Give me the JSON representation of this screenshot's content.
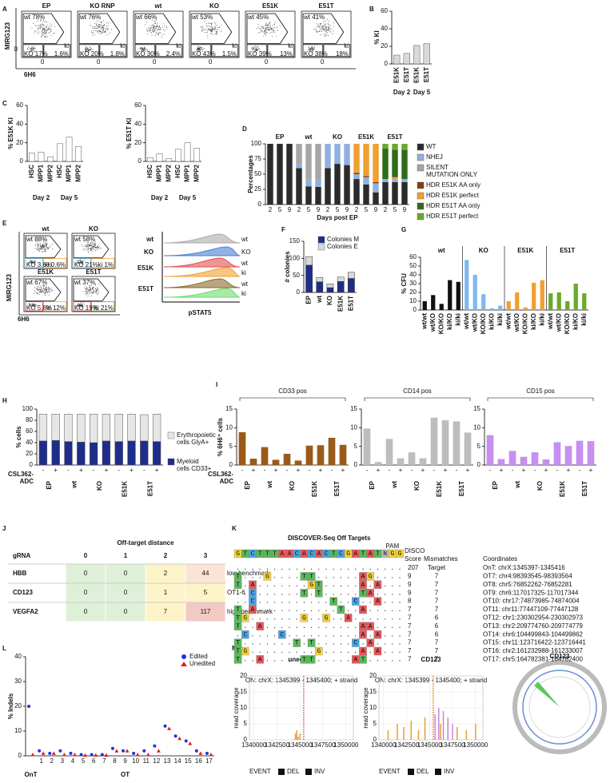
{
  "panel_labels": [
    "A",
    "B",
    "C",
    "D",
    "E",
    "F",
    "G",
    "H",
    "I",
    "J",
    "K",
    "L",
    "M"
  ],
  "flow_a": {
    "y_label": "MIRG123",
    "x_label": "6H6",
    "zero": "0",
    "ki_tag": "ki",
    "plots": [
      {
        "title": "EP",
        "wt": "wt 78%",
        "ko": "KO 17%",
        "ki": "1.6%"
      },
      {
        "title": "KO RNP",
        "wt": "wt 76%",
        "ko": "KO 20%",
        "ki": "1.8%"
      },
      {
        "title": "wt",
        "wt": "wt 66%",
        "ko": "KO 30%",
        "ki": "2.4%"
      },
      {
        "title": "KO",
        "wt": "wt 53%",
        "ko": "KO 43%",
        "ki": "1.5%"
      },
      {
        "title": "E51K",
        "wt": "wt 45%",
        "ko": "KO 39%",
        "ki": "13%"
      },
      {
        "title": "E51T",
        "wt": "wt 41%",
        "ko": "KO 38%",
        "ki": "18%"
      }
    ]
  },
  "flow_e": {
    "y_label": "MIRG123",
    "x_label": "6H6",
    "plots": [
      {
        "title": "wt",
        "wt": "wt 88%",
        "ko": "KO 3.6%",
        "ki": "ki 0.6%"
      },
      {
        "title": "KO",
        "wt": "wt 58%",
        "ko": "KO 21%",
        "ki": "ki 1%"
      },
      {
        "title": "E51K",
        "wt": "wt 67%",
        "ko": "KO 5.8%",
        "ki": "ki 12%"
      },
      {
        "title": "E51T",
        "wt": "wt 37%",
        "ko": "KO 19%",
        "ki": "ki 21%"
      }
    ],
    "histogram": {
      "x_label": "pSTAT5",
      "row_labels": [
        "wt",
        "KO",
        "E51K",
        "E51T"
      ],
      "trace_labels": [
        "wt",
        "KO",
        "wt",
        "ki",
        "wt",
        "ki"
      ]
    }
  },
  "chart_data": [
    {
      "type": "bar",
      "y_label": "% KI",
      "categories": [
        "E51K",
        "E51T",
        "E51K",
        "E51T"
      ],
      "groups": [
        "Day 2",
        "Day 5"
      ],
      "values": [
        10,
        12,
        21,
        23
      ],
      "color": "#d9d9d9",
      "ylim": [
        0,
        60
      ],
      "yticks": [
        0,
        20,
        40,
        60
      ]
    },
    {
      "type": "bar",
      "y_label": "% E51K KI",
      "categories": [
        "HSC",
        "MPP1",
        "MPP2",
        "HSC",
        "MPP1",
        "MPP2"
      ],
      "groups": [
        "Day 2",
        "Day 5"
      ],
      "values": [
        9,
        10,
        5,
        19,
        26,
        16
      ],
      "color": "#ffffff",
      "ylim": [
        0,
        60
      ],
      "yticks": [
        0,
        20,
        40,
        60
      ]
    },
    {
      "type": "bar",
      "y_label": "% E51T KI",
      "categories": [
        "HSC",
        "MPP1",
        "MPP2",
        "HSC",
        "MPP1",
        "MPP2"
      ],
      "groups": [
        "Day 2",
        "Day 5"
      ],
      "values": [
        4,
        8,
        3,
        13,
        20,
        14
      ],
      "color": "#ffffff",
      "ylim": [
        0,
        60
      ],
      "yticks": [
        0,
        20,
        40,
        60
      ]
    },
    {
      "type": "stacked_bar",
      "y_label": "Percentages",
      "x_label": "Days post EP",
      "categories": [
        "2",
        "5",
        "9",
        "2",
        "5",
        "9",
        "2",
        "5",
        "9",
        "2",
        "5",
        "9",
        "2",
        "5",
        "9"
      ],
      "groups": [
        "EP",
        "wt",
        "KO",
        "E51K",
        "E51T"
      ],
      "ylim": [
        0,
        100
      ],
      "yticks": [
        0,
        25,
        50,
        75,
        100
      ],
      "series": [
        {
          "name": "WT",
          "color": "#2b2b2b",
          "values": [
            100,
            100,
            100,
            60,
            30,
            29,
            60,
            67,
            65,
            42,
            33,
            20,
            37,
            37,
            37
          ]
        },
        {
          "name": "NHEJ",
          "color": "#8fb0e0",
          "values": [
            0,
            0,
            0,
            7,
            12,
            12,
            40,
            33,
            35,
            8,
            12,
            15,
            5,
            5,
            5
          ]
        },
        {
          "name": "SILENT MUTATION ONLY",
          "color": "#a6a6a6",
          "values": [
            0,
            0,
            0,
            33,
            58,
            59,
            0,
            0,
            0,
            0,
            0,
            0,
            0,
            0,
            0
          ]
        },
        {
          "name": "HDR E51K AA only",
          "color": "#8b3a0f",
          "values": [
            0,
            0,
            0,
            0,
            0,
            0,
            0,
            0,
            0,
            2,
            2,
            2,
            0,
            0,
            0
          ]
        },
        {
          "name": "HDR E51K perfect",
          "color": "#f0a030",
          "values": [
            0,
            0,
            0,
            0,
            0,
            0,
            0,
            0,
            0,
            48,
            53,
            63,
            0,
            3,
            0
          ]
        },
        {
          "name": "HDR E51T AA only",
          "color": "#2e6b1a",
          "values": [
            0,
            0,
            0,
            0,
            0,
            0,
            0,
            0,
            0,
            0,
            0,
            0,
            50,
            45,
            48
          ]
        },
        {
          "name": "HDR E51T perfect",
          "color": "#6aaa2a",
          "values": [
            0,
            0,
            0,
            0,
            0,
            0,
            0,
            0,
            0,
            0,
            0,
            0,
            8,
            10,
            10
          ]
        }
      ]
    },
    {
      "type": "stacked_bar",
      "y_label": "# colonies",
      "categories": [
        "EP",
        "wt",
        "KO",
        "E51K",
        "E51T"
      ],
      "ylim": [
        0,
        150
      ],
      "yticks": [
        0,
        50,
        100,
        150
      ],
      "series": [
        {
          "name": "Colonies M",
          "color": "#1f2d8a",
          "values": [
            80,
            31,
            14,
            32,
            41
          ]
        },
        {
          "name": "Colonies E",
          "color": "#d9d9d9",
          "values": [
            25,
            13,
            11,
            13,
            18
          ]
        }
      ]
    },
    {
      "type": "sequential_bar",
      "y_label": "% CFU",
      "categories": [
        "wt/wt",
        "wt/KO",
        "KO/KO",
        "ki/KO",
        "ki/ki"
      ],
      "ylim": [
        0,
        60
      ],
      "yticks": [
        0,
        10,
        20,
        30,
        40,
        50,
        60
      ],
      "series": [
        {
          "name": "wt",
          "color": "#111111",
          "values": [
            10,
            17,
            7,
            34,
            32
          ]
        },
        {
          "name": "KO",
          "color": "#7fb8f0",
          "values": [
            57,
            40,
            18,
            2,
            5
          ]
        },
        {
          "name": "E51K",
          "color": "#f0a030",
          "values": [
            10,
            20,
            3,
            31,
            34
          ]
        },
        {
          "name": "E51T",
          "color": "#6aaa2a",
          "values": [
            19,
            20,
            10,
            30,
            19
          ]
        }
      ]
    },
    {
      "type": "stacked_bar",
      "y_label": "% cells",
      "x_label": [
        "CSL362-",
        "ADC"
      ],
      "categories": [
        "-",
        "+",
        "-",
        "+",
        "-",
        "+",
        "-",
        "+",
        "-",
        "+"
      ],
      "groups": [
        "EP",
        "wt",
        "KO",
        "E51K",
        "E51T"
      ],
      "ylim": [
        0,
        100
      ],
      "yticks": [
        0,
        20,
        40,
        60,
        80,
        100
      ],
      "series": [
        {
          "name": "Myeloid cells CD33+",
          "color": "#1f2d8a",
          "values": [
            43,
            44,
            42,
            41,
            40,
            43,
            42,
            43,
            43,
            42
          ]
        },
        {
          "name": "Erythropoietic cells GlyA+",
          "color": "#e6e6e6",
          "values": [
            48,
            47,
            49,
            50,
            51,
            48,
            49,
            48,
            47,
            49
          ]
        }
      ]
    },
    {
      "type": "bar",
      "title": "CD33 pos",
      "y_label": "% 6H6⁺ cells",
      "x_label": [
        "CSL362-",
        "ADC"
      ],
      "categories": [
        "-",
        "+",
        "-",
        "+",
        "-",
        "+",
        "-",
        "+",
        "-",
        "+"
      ],
      "groups": [
        "EP",
        "wt",
        "KO",
        "E51K",
        "E51T"
      ],
      "values": [
        8.8,
        1.7,
        4.8,
        1.4,
        3.0,
        1.2,
        5.2,
        5.3,
        7.3,
        5.4
      ],
      "color": "#9a5a1a",
      "ylim": [
        0,
        15
      ],
      "yticks": [
        0,
        5,
        10,
        15
      ]
    },
    {
      "type": "bar",
      "title": "CD14 pos",
      "categories": [
        "-",
        "+",
        "-",
        "+",
        "-",
        "+",
        "-",
        "+",
        "-",
        "+"
      ],
      "groups": [
        "EP",
        "wt",
        "KO",
        "E51K",
        "E51T"
      ],
      "values": [
        9.8,
        0.8,
        7.0,
        1.8,
        3.4,
        1.8,
        12.7,
        12.0,
        11.7,
        8.7
      ],
      "color": "#bdbdbd",
      "ylim": [
        0,
        15
      ],
      "yticks": [
        0,
        5,
        10,
        15
      ]
    },
    {
      "type": "bar",
      "title": "CD15 pos",
      "categories": [
        "-",
        "+",
        "-",
        "+",
        "-",
        "+",
        "-",
        "+",
        "-",
        "+"
      ],
      "groups": [
        "EP",
        "wt",
        "KO",
        "E51K",
        "E51T"
      ],
      "values": [
        8.0,
        1.6,
        3.8,
        2.2,
        3.4,
        1.5,
        6.1,
        5.1,
        6.5,
        6.4
      ],
      "color": "#c68ff0",
      "ylim": [
        0,
        15
      ],
      "yticks": [
        0,
        5,
        10,
        15
      ]
    },
    {
      "type": "dot",
      "y_label": "% Indels",
      "categories": [
        null,
        "1",
        "2",
        "3",
        "4",
        "5",
        "6",
        "7",
        "8",
        "9",
        "10",
        "11",
        "12",
        "13",
        "14",
        "15",
        "16",
        "17"
      ],
      "groups": [
        "OnT",
        "OT"
      ],
      "ylim": [
        0,
        40
      ],
      "yticks": [
        0,
        10,
        20,
        30,
        40
      ],
      "series": [
        {
          "name": "Edited",
          "color": "#2233dd",
          "values": [
            20,
            2,
            1,
            2,
            1,
            0.5,
            0.5,
            0.5,
            3,
            2,
            1,
            2,
            4,
            12,
            8,
            6,
            2,
            1
          ]
        },
        {
          "name": "Unedited",
          "color": "#dd2222",
          "values": [
            0.5,
            1,
            1,
            0.5,
            0.5,
            0.3,
            0.3,
            0.3,
            2,
            2,
            0.5,
            0.5,
            2,
            11,
            7,
            5,
            1,
            0.5
          ]
        }
      ]
    },
    {
      "type": "coverage",
      "title": "unedited",
      "subtitle": "ON: chrX: 1345399 - 1345400; + strand",
      "y_label": "read coverage",
      "legend_title": "EVENT",
      "xlim": [
        1339500,
        1350800
      ],
      "xticks": [
        1340000,
        1342500,
        1345000,
        1347500,
        1350000
      ],
      "ylim": [
        0,
        20
      ],
      "yticks": [
        0,
        5,
        10,
        15,
        20
      ],
      "series": [
        {
          "name": "DEL",
          "color": "#e8a33c",
          "x": [
            1344500,
            1344650,
            1344800,
            1345000,
            1345399
          ],
          "values": [
            2,
            3,
            1,
            2,
            20
          ]
        },
        {
          "name": "INV",
          "color": "#c77de0",
          "x": [
            1345399
          ],
          "values": [
            20
          ]
        }
      ]
    },
    {
      "type": "coverage",
      "title": "CD123",
      "subtitle": "ON: chrX: 1345399 - 1345400; + strand",
      "y_label": "read coverage",
      "legend_title": "EVENT",
      "xlim": [
        1339500,
        1350800
      ],
      "xticks": [
        1340000,
        1342500,
        1345000,
        1347500,
        1350000
      ],
      "ylim": [
        0,
        20
      ],
      "yticks": [
        0,
        5,
        10,
        15,
        20
      ],
      "series": [
        {
          "name": "DEL",
          "color": "#e8a33c",
          "x": [
            1340500,
            1341500,
            1342200,
            1343000,
            1343800,
            1344500,
            1345399,
            1346200,
            1347000,
            1348000,
            1349000,
            1350000
          ],
          "values": [
            3,
            5,
            4,
            6,
            3,
            7,
            20,
            5,
            6,
            4,
            3,
            5
          ]
        },
        {
          "name": "INV",
          "color": "#c77de0",
          "x": [
            1345600,
            1346000,
            1346500,
            1347000,
            1347500
          ],
          "values": [
            8,
            10,
            9,
            7,
            5
          ]
        }
      ]
    }
  ],
  "table_j": {
    "header": "Off-target distance",
    "columns": [
      "gRNA",
      "0",
      "1",
      "2",
      "3"
    ],
    "rows": [
      [
        "HBB",
        0,
        0,
        2,
        44
      ],
      [
        "CD123",
        0,
        0,
        1,
        5
      ],
      [
        "VEGFA2",
        0,
        0,
        7,
        117
      ]
    ],
    "notes": [
      "low benchmark",
      "OT1-6",
      "high benchmark"
    ]
  },
  "discover_k": {
    "title": "DISCOVER-Seq Off Targets",
    "pam": "PAM",
    "reference": "GTCTTTAACACACTCGATATNGG",
    "headers": [
      "DISCO",
      "Score",
      "Mismatches",
      "Coordinates"
    ],
    "base_colors": {
      "A": "#e8575a",
      "C": "#4aa3e0",
      "G": "#f2d13a",
      "T": "#5cb85c",
      "N": "#bbbbbb"
    },
    "rows": [
      {
        "sequence": ".......................",
        "score": 207,
        "mismatches": "Target",
        "coordinates": "OnT: chrX:1345397-1345416",
        "color": "#d62728"
      },
      {
        "sequence": "T...G....TT......AG....",
        "score": 9,
        "mismatches": 7,
        "coordinates": "OT7: chr4:98393545-98393564"
      },
      {
        "sequence": "T.A.......GT.....A.A...",
        "score": 9,
        "mismatches": 7,
        "coordinates": "OT8: chr5:76852262-76852281"
      },
      {
        "sequence": "..C......T.T.....TA....",
        "score": 9,
        "mismatches": 7,
        "coordinates": "OT9: chr6:117017325-117017344"
      },
      {
        "sequence": "..C..........T..C..A...",
        "score": 8,
        "mismatches": 7,
        "coordinates": "OT10: chr17:74873985-74874004"
      },
      {
        "sequence": "T.A...........T..A.....",
        "score": 7,
        "mismatches": 7,
        "coordinates": "OT11: chr11:77447109-77447128"
      },
      {
        "sequence": "TG.......G..G..A.......",
        "score": 7,
        "mismatches": 6,
        "coordinates": "OT12: chr1:230302954-230302973"
      },
      {
        "sequence": "T..A.............AA....",
        "score": 7,
        "mismatches": 6,
        "coordinates": "OT13: chr2:209774760-209774779"
      },
      {
        "sequence": ".C....C..........A.A...",
        "score": 7,
        "mismatches": 6,
        "coordinates": "OT14: chr6:104499843-104499862"
      },
      {
        "sequence": "T.......T.T.....C.A....",
        "score": 7,
        "mismatches": 7,
        "coordinates": "OT15: chr11:123716422-123716441"
      },
      {
        "sequence": "TG.........G.....A.A...",
        "score": 7,
        "mismatches": 7,
        "coordinates": "OT16: chr2:161232988-161233007"
      },
      {
        "sequence": "T..A.....TT.....AT.....",
        "score": 7,
        "mismatches": 7,
        "coordinates": "OT17: chr5:164782381-164782400"
      }
    ]
  },
  "circos": {
    "title": "CD123"
  }
}
